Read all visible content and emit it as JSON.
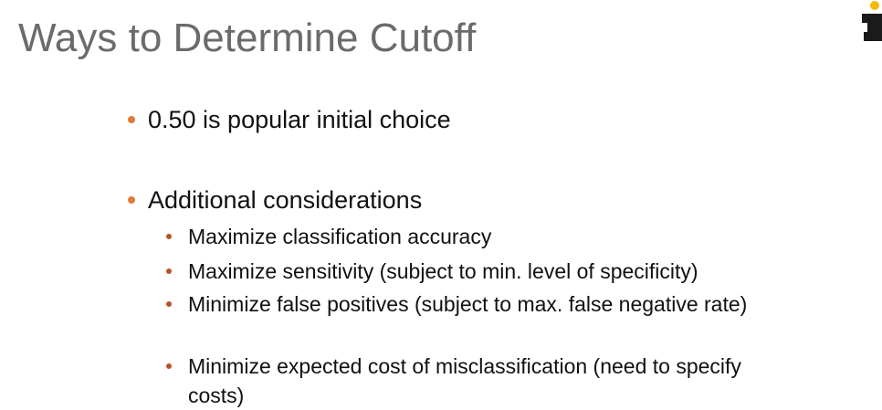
{
  "slide": {
    "title": "Ways to Determine Cutoff",
    "bullets": [
      "0.50 is popular initial choice",
      "Additional considerations"
    ],
    "sub_bullets": [
      "Maximize classification accuracy",
      "Maximize sensitivity (subject to min. level of specificity)",
      "Minimize false positives (subject to max. false negative rate)",
      "Minimize expected cost of misclassification (need to specify costs)"
    ]
  },
  "colors": {
    "title": "#6b6b6b",
    "text": "#111111",
    "bullet_primary": "#e07b39",
    "bullet_secondary": "#b4532a",
    "logo_dark": "#1a1a1a",
    "logo_accent": "#f5b90a"
  },
  "icons": {
    "logo": "brand-logo-icon"
  }
}
